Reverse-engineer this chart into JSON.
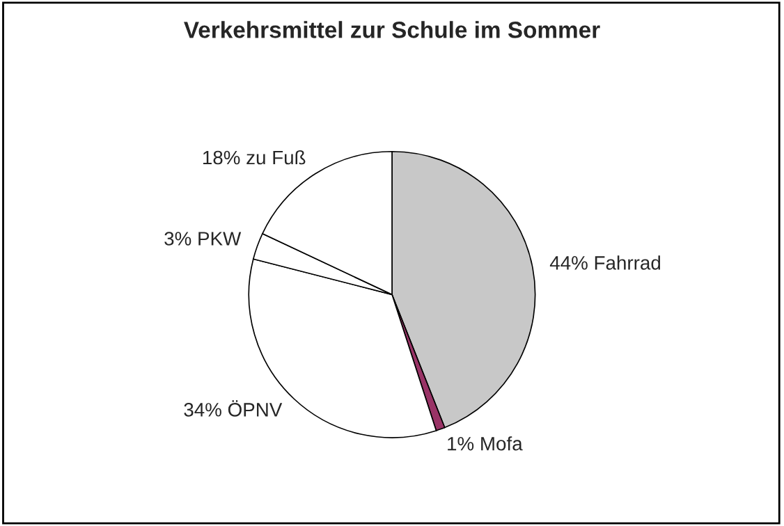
{
  "chart_data": {
    "type": "pie",
    "title": "Verkehrsmittel zur Schule im Sommer",
    "categories": [
      "44% Fahrrad",
      "1% Mofa",
      "34% ÖPNV",
      "3% PKW",
      "18% zu Fuß"
    ],
    "values": [
      44,
      1,
      34,
      3,
      18
    ],
    "colors": [
      "#c8c8c8",
      "#993366",
      "#ffffff",
      "#ffffff",
      "#ffffff"
    ]
  }
}
